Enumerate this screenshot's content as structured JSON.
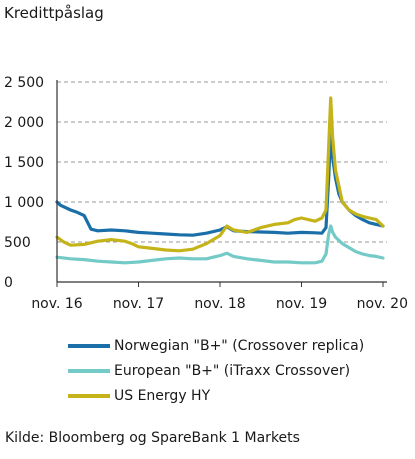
{
  "title": "Kredittpåslag",
  "source": "Kilde: Bloomberg og SpareBank 1 Markets",
  "colors": {
    "norwegian": "#1b6fa8",
    "european": "#74cac6",
    "us_energy": "#c4b41a",
    "grid": "#9a9a9a",
    "axis": "#333333"
  },
  "chart_data": {
    "type": "line",
    "title": "Kredittpåslag",
    "xlabel": "",
    "ylabel": "",
    "ylim": [
      0,
      2500
    ],
    "yticks": [
      0,
      500,
      1000,
      1500,
      2000,
      2500
    ],
    "ytick_labels": [
      "0",
      "500",
      "1 000",
      "1 500",
      "2 000",
      "2 500"
    ],
    "xticks": [
      0,
      12,
      24,
      36,
      48
    ],
    "xtick_labels": [
      "nov. 16",
      "nov. 17",
      "nov. 18",
      "nov. 19",
      "nov. 20"
    ],
    "xlim": [
      0,
      48
    ],
    "x_unit": "months since nov. 16",
    "grid": "horizontal dashed",
    "legend_position": "bottom",
    "series": [
      {
        "name": "Norwegian \"B+\" (Crossover replica)",
        "color": "#1b6fa8",
        "points": [
          [
            0,
            1000
          ],
          [
            0.5,
            960
          ],
          [
            1,
            940
          ],
          [
            2,
            900
          ],
          [
            3,
            870
          ],
          [
            4,
            830
          ],
          [
            5,
            660
          ],
          [
            6,
            640
          ],
          [
            8,
            650
          ],
          [
            10,
            640
          ],
          [
            11,
            630
          ],
          [
            12,
            620
          ],
          [
            14,
            610
          ],
          [
            16,
            600
          ],
          [
            18,
            590
          ],
          [
            20,
            585
          ],
          [
            22,
            610
          ],
          [
            24,
            650
          ],
          [
            25,
            690
          ],
          [
            26,
            640
          ],
          [
            28,
            630
          ],
          [
            30,
            625
          ],
          [
            32,
            620
          ],
          [
            34,
            610
          ],
          [
            36,
            620
          ],
          [
            38,
            615
          ],
          [
            39,
            610
          ],
          [
            39.6,
            680
          ],
          [
            40.0,
            1300
          ],
          [
            40.3,
            1900
          ],
          [
            40.6,
            1550
          ],
          [
            41,
            1300
          ],
          [
            41.5,
            1100
          ],
          [
            42,
            1000
          ],
          [
            43,
            900
          ],
          [
            44,
            830
          ],
          [
            45,
            780
          ],
          [
            46,
            740
          ],
          [
            47,
            720
          ],
          [
            48,
            700
          ]
        ]
      },
      {
        "name": "European \"B+\" (iTraxx Crossover)",
        "color": "#74cac6",
        "points": [
          [
            0,
            310
          ],
          [
            2,
            290
          ],
          [
            4,
            280
          ],
          [
            6,
            260
          ],
          [
            8,
            250
          ],
          [
            10,
            240
          ],
          [
            12,
            250
          ],
          [
            14,
            270
          ],
          [
            16,
            290
          ],
          [
            18,
            300
          ],
          [
            20,
            290
          ],
          [
            22,
            290
          ],
          [
            24,
            330
          ],
          [
            25,
            360
          ],
          [
            26,
            320
          ],
          [
            28,
            290
          ],
          [
            30,
            270
          ],
          [
            32,
            250
          ],
          [
            34,
            250
          ],
          [
            36,
            240
          ],
          [
            38,
            240
          ],
          [
            39,
            260
          ],
          [
            39.6,
            350
          ],
          [
            40.0,
            600
          ],
          [
            40.3,
            700
          ],
          [
            40.6,
            620
          ],
          [
            41,
            560
          ],
          [
            42,
            480
          ],
          [
            43,
            430
          ],
          [
            44,
            380
          ],
          [
            45,
            350
          ],
          [
            46,
            330
          ],
          [
            47,
            320
          ],
          [
            48,
            300
          ]
        ]
      },
      {
        "name": "US Energy HY",
        "color": "#c4b41a",
        "points": [
          [
            0,
            560
          ],
          [
            1,
            500
          ],
          [
            2,
            460
          ],
          [
            4,
            470
          ],
          [
            6,
            510
          ],
          [
            8,
            530
          ],
          [
            10,
            510
          ],
          [
            11,
            480
          ],
          [
            12,
            440
          ],
          [
            14,
            420
          ],
          [
            16,
            400
          ],
          [
            18,
            390
          ],
          [
            20,
            410
          ],
          [
            22,
            480
          ],
          [
            24,
            580
          ],
          [
            25,
            700
          ],
          [
            26,
            650
          ],
          [
            28,
            620
          ],
          [
            30,
            680
          ],
          [
            32,
            720
          ],
          [
            34,
            740
          ],
          [
            35,
            780
          ],
          [
            36,
            800
          ],
          [
            38,
            760
          ],
          [
            39,
            800
          ],
          [
            39.6,
            900
          ],
          [
            40.0,
            1700
          ],
          [
            40.3,
            2300
          ],
          [
            40.6,
            1800
          ],
          [
            41,
            1400
          ],
          [
            41.5,
            1200
          ],
          [
            42,
            1000
          ],
          [
            43,
            900
          ],
          [
            44,
            850
          ],
          [
            45,
            820
          ],
          [
            46,
            800
          ],
          [
            47,
            780
          ],
          [
            48,
            700
          ]
        ]
      }
    ]
  }
}
